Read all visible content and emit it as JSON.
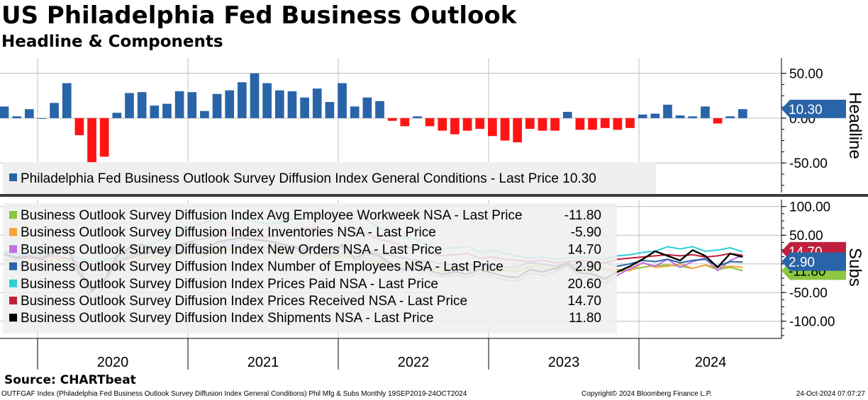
{
  "title": "US Philadelphia Fed Business Outlook",
  "subtitle": "Headline & Components",
  "source": "Source:  CHARTbeat",
  "footer": {
    "left": "OUTFGAF Index (Philadelphia Fed Business Outlook Survey Diffusion Index General Conditions) Phil Mfg & Subs  Monthly 19SEP2019-24OCT2024",
    "center": "Copyright© 2024 Bloomberg Finance L.P.",
    "right": "24-Oct-2024 07:07:27"
  },
  "colors": {
    "positive_bar": "#2a64a8",
    "negative_bar": "#ff1414",
    "panel_divider": "#3a3a3a",
    "legend_bg": "#efefef"
  },
  "chart_data": [
    {
      "type": "bar",
      "panel_label": "Headline",
      "x_labels": [
        "2020",
        "2021",
        "2022",
        "2023",
        "2024"
      ],
      "ylim": [
        -83,
        67
      ],
      "yticks": [
        "50.00",
        "0.00",
        "-50.00"
      ],
      "grid": true,
      "last_value_tag": "10.30",
      "legend": "Philadelphia Fed Business Outlook Survey Diffusion Index General Conditions - Last Price 10.30",
      "series": [
        {
          "name": "Philadelphia Fed Business Outlook Survey Diffusion Index General Conditions",
          "start": "2019-10",
          "values": [
            13,
            2,
            10,
            0,
            17,
            39,
            -19,
            -57,
            -43,
            6,
            28,
            29,
            14,
            16,
            30,
            29,
            8,
            27,
            31,
            40,
            50,
            39,
            31,
            30,
            23,
            33,
            18,
            39,
            13,
            23,
            19,
            -3,
            -9,
            2,
            -9,
            -14,
            -18,
            -14,
            -12,
            -20,
            -25,
            -27,
            -12,
            -14,
            -14,
            7,
            -13,
            -13,
            -11,
            -13,
            -11,
            4,
            5,
            15,
            3,
            2,
            13,
            -6,
            2,
            10
          ]
        }
      ]
    },
    {
      "type": "line",
      "panel_label": "Subs",
      "x_labels": [
        "2020",
        "2021",
        "2022",
        "2023",
        "2024"
      ],
      "ylim": [
        -130,
        112
      ],
      "yticks": [
        "100.00",
        "50.00",
        "0.00",
        "-50.00",
        "-100.00"
      ],
      "grid": true,
      "last_value_tags": [
        "14.70",
        "2.90",
        "-11.80"
      ],
      "legend_placement": "top-left",
      "series": [
        {
          "name": "Business Outlook Survey Diffusion Index Avg Employee Workweek NSA",
          "legend_label": "Business Outlook Survey Diffusion Index Avg Employee Workweek NSA - Last Price",
          "last_price": "-11.80",
          "color": "#8dc63f",
          "values": [
            8,
            6,
            12,
            5,
            10,
            4,
            -20,
            -65,
            -40,
            5,
            18,
            22,
            18,
            16,
            20,
            22,
            16,
            22,
            28,
            25,
            25,
            22,
            20,
            18,
            15,
            18,
            12,
            18,
            6,
            10,
            5,
            2,
            -3,
            -4,
            -8,
            -6,
            -10,
            -8,
            -10,
            -12,
            -12,
            -14,
            -6,
            -8,
            -10,
            -4,
            -12,
            -14,
            -10,
            -14,
            -10,
            -6,
            -3,
            -2,
            -4,
            -8,
            -2,
            -10,
            -6,
            -12
          ]
        },
        {
          "name": "Business Outlook Survey Diffusion Index Inventories NSA",
          "legend_label": "Business Outlook Survey Diffusion Index Inventories NSA - Last Price",
          "last_price": "-5.90",
          "color": "#f7a235",
          "values": [
            5,
            8,
            10,
            12,
            4,
            10,
            -10,
            -22,
            -18,
            -5,
            2,
            10,
            14,
            8,
            18,
            20,
            12,
            28,
            24,
            30,
            22,
            30,
            26,
            24,
            20,
            16,
            10,
            14,
            8,
            6,
            2,
            -4,
            2,
            -6,
            -8,
            -12,
            -4,
            -10,
            -8,
            -6,
            -12,
            -8,
            -4,
            -2,
            -6,
            0,
            -10,
            -4,
            -8,
            -10,
            -12,
            2,
            -6,
            -4,
            0,
            -8,
            -2,
            -6,
            -4,
            -6
          ]
        },
        {
          "name": "Business Outlook Survey Diffusion Index New Orders NSA",
          "legend_label": "Business Outlook Survey Diffusion Index New Orders NSA - Last Price",
          "last_price": "14.70",
          "color": "#bf70e8",
          "values": [
            15,
            8,
            12,
            5,
            18,
            28,
            -20,
            -62,
            -42,
            10,
            24,
            28,
            20,
            14,
            30,
            32,
            20,
            34,
            38,
            42,
            44,
            38,
            34,
            26,
            18,
            28,
            12,
            30,
            6,
            16,
            10,
            -6,
            -14,
            -4,
            -18,
            -22,
            -20,
            -24,
            -16,
            -22,
            -28,
            -30,
            -16,
            -20,
            -14,
            -4,
            -22,
            -24,
            -34,
            -20,
            -8,
            2,
            -4,
            8,
            -6,
            4,
            10,
            -12,
            6,
            15
          ]
        },
        {
          "name": "Business Outlook Survey Diffusion Index Number of Employees NSA",
          "legend_label": "Business Outlook Survey Diffusion Index Number of Employees NSA - Last Price",
          "last_price": "2.90",
          "color": "#2a64a8",
          "values": [
            18,
            12,
            20,
            14,
            22,
            26,
            -8,
            -45,
            -28,
            2,
            14,
            18,
            22,
            20,
            24,
            26,
            22,
            30,
            32,
            34,
            30,
            28,
            30,
            32,
            26,
            28,
            24,
            30,
            22,
            24,
            18,
            14,
            10,
            6,
            4,
            0,
            -2,
            0,
            -4,
            -2,
            -6,
            -4,
            2,
            0,
            -4,
            2,
            -6,
            -2,
            2,
            -4,
            0,
            6,
            4,
            8,
            2,
            6,
            8,
            -4,
            4,
            3
          ]
        },
        {
          "name": "Business Outlook Survey Diffusion Index Prices Paid NSA",
          "legend_label": "Business Outlook Survey Diffusion Index Prices Paid NSA - Last Price",
          "last_price": "20.60",
          "color": "#2ccfd4",
          "values": [
            22,
            18,
            16,
            20,
            24,
            18,
            10,
            4,
            6,
            12,
            20,
            30,
            36,
            48,
            58,
            64,
            72,
            80,
            84,
            78,
            74,
            70,
            72,
            78,
            82,
            88,
            84,
            80,
            92,
            76,
            62,
            56,
            46,
            42,
            30,
            26,
            28,
            30,
            20,
            24,
            18,
            14,
            10,
            12,
            8,
            10,
            12,
            10,
            8,
            14,
            16,
            20,
            22,
            30,
            26,
            30,
            22,
            24,
            28,
            21
          ]
        },
        {
          "name": "Business Outlook Survey Diffusion Index Prices Received NSA",
          "legend_label": "Business Outlook Survey Diffusion Index Prices Received NSA - Last Price",
          "last_price": "14.70",
          "color": "#c01f3c",
          "values": [
            16,
            12,
            10,
            12,
            14,
            10,
            2,
            -8,
            -4,
            4,
            10,
            16,
            20,
            26,
            34,
            40,
            44,
            50,
            54,
            52,
            48,
            46,
            50,
            56,
            60,
            62,
            58,
            56,
            62,
            52,
            42,
            38,
            30,
            26,
            18,
            14,
            16,
            18,
            10,
            12,
            8,
            6,
            4,
            6,
            2,
            4,
            6,
            4,
            2,
            8,
            10,
            12,
            14,
            16,
            14,
            16,
            12,
            14,
            18,
            15
          ]
        },
        {
          "name": "Business Outlook Survey Diffusion Index Shipments NSA",
          "legend_label": "Business Outlook Survey Diffusion Index Shipments NSA - Last Price",
          "last_price": "11.80",
          "color": "#000000",
          "values": [
            18,
            10,
            14,
            8,
            22,
            30,
            -16,
            -48,
            -30,
            14,
            28,
            34,
            22,
            20,
            34,
            38,
            24,
            38,
            42,
            46,
            42,
            40,
            36,
            30,
            22,
            30,
            16,
            34,
            10,
            20,
            14,
            -2,
            -10,
            2,
            -12,
            -18,
            -14,
            -18,
            -10,
            -16,
            -22,
            -24,
            -10,
            -14,
            -8,
            0,
            -16,
            -18,
            -26,
            -14,
            -4,
            8,
            22,
            14,
            6,
            24,
            14,
            -6,
            18,
            12
          ]
        }
      ]
    }
  ]
}
